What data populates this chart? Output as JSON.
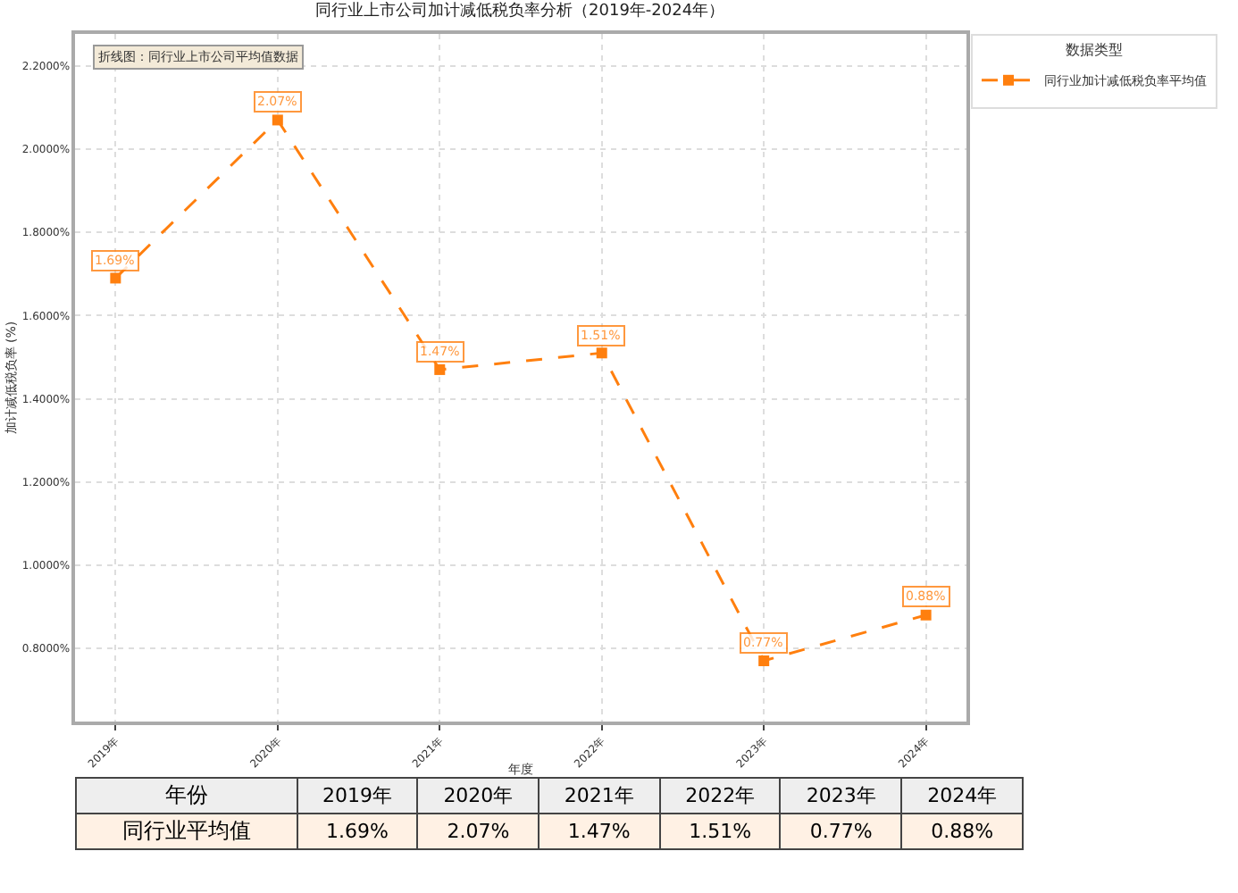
{
  "chart_data": {
    "type": "line",
    "title": "同行业上市公司加计减低税负率分析（2019年-2024年）",
    "xlabel": "年度",
    "ylabel": "加计减低税负率 (%)",
    "legend_title": "数据类型",
    "categories": [
      "2019年",
      "2020年",
      "2021年",
      "2022年",
      "2023年",
      "2024年"
    ],
    "series": [
      {
        "name": "同行业加计减低税负率平均值",
        "color": "#ff7f0e",
        "values": [
          1.69,
          2.07,
          1.47,
          1.51,
          0.77,
          0.88
        ],
        "value_labels": [
          "1.69%",
          "2.07%",
          "1.47%",
          "1.51%",
          "0.77%",
          "0.88%"
        ]
      }
    ],
    "ylim": [
      0.624,
      2.277
    ],
    "yticks": [
      {
        "value": 0.8,
        "label": "0.8000%"
      },
      {
        "value": 1.0,
        "label": "1.0000%"
      },
      {
        "value": 1.2,
        "label": "1.2000%"
      },
      {
        "value": 1.4,
        "label": "1.4000%"
      },
      {
        "value": 1.6,
        "label": "1.6000%"
      },
      {
        "value": 1.8,
        "label": "1.8000%"
      },
      {
        "value": 2.0,
        "label": "2.0000%"
      },
      {
        "value": 2.2,
        "label": "2.2000%"
      }
    ],
    "annotations": [
      "折线图：同行业上市公司平均值数据",
      "年份",
      "同行业平均值"
    ],
    "grid": true,
    "legend": "top right",
    "marker": "square",
    "line_style": "dashed"
  }
}
